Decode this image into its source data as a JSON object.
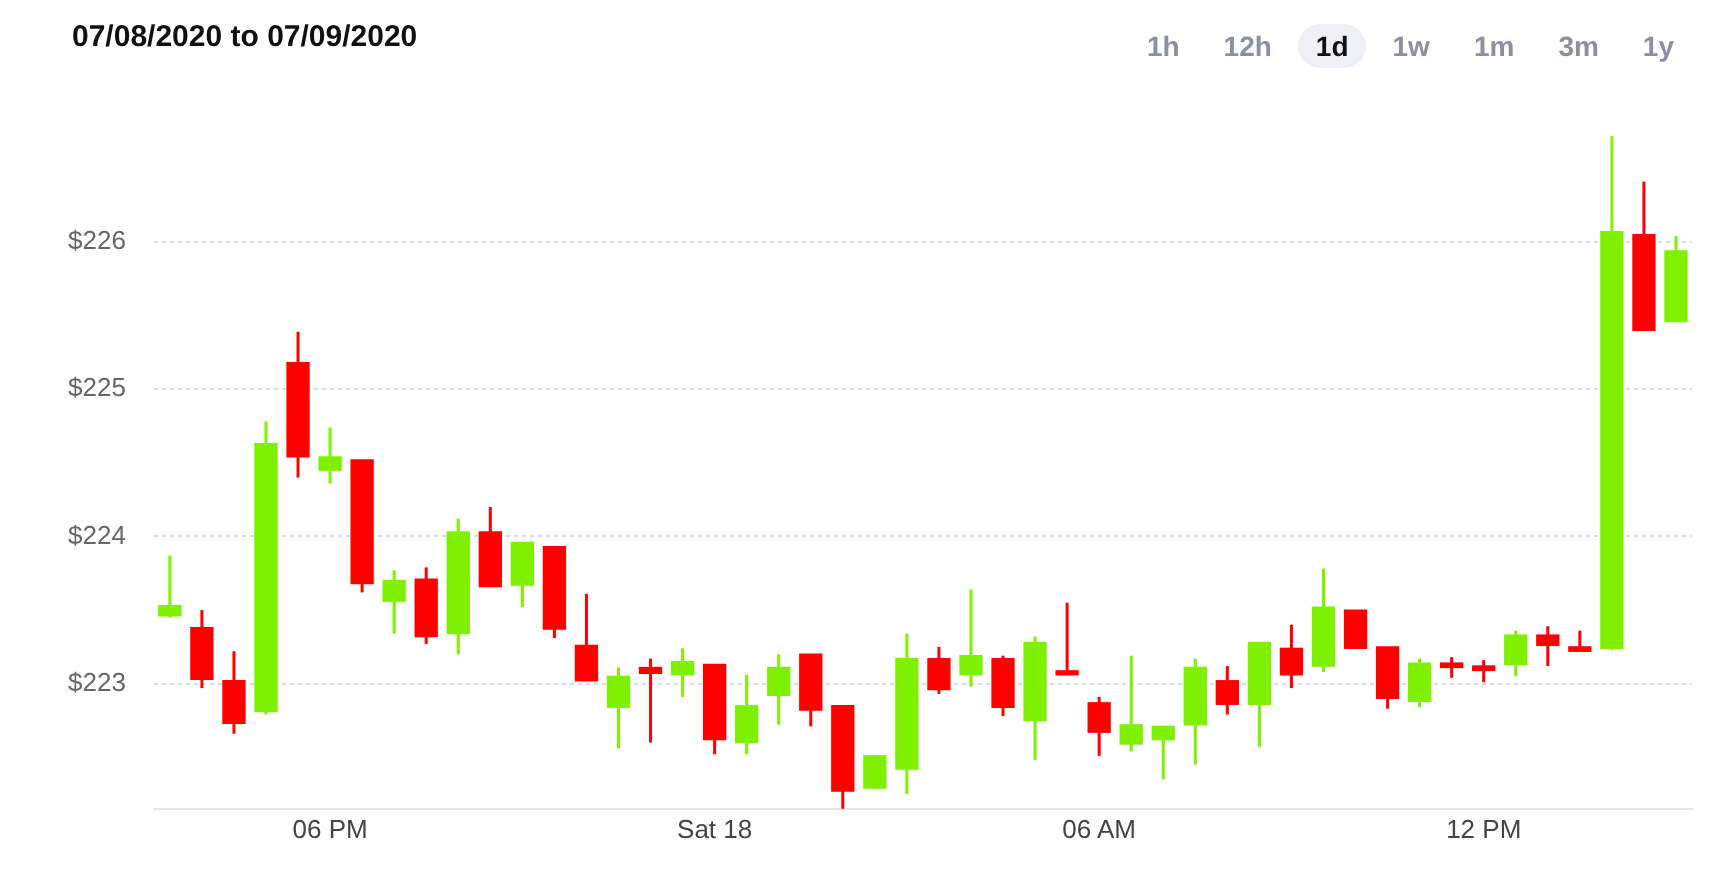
{
  "chart_data": {
    "type": "candlestick",
    "title": "07/08/2020 to 07/09/2020",
    "annotations": [
      "1h",
      "12h",
      "1d",
      "1w",
      "1m",
      "3m",
      "1y"
    ],
    "categories": [
      null,
      null,
      null,
      null,
      null,
      "06 PM",
      null,
      null,
      null,
      null,
      null,
      null,
      null,
      null,
      null,
      null,
      null,
      "Sat 18",
      null,
      null,
      null,
      null,
      null,
      null,
      null,
      null,
      null,
      null,
      null,
      "06 AM",
      null,
      null,
      null,
      null,
      null,
      null,
      null,
      null,
      null,
      null,
      null,
      "12 PM",
      null,
      null,
      null,
      null,
      null,
      null
    ],
    "ohlc": [
      [
        223.46,
        223.87,
        223.45,
        223.53
      ],
      [
        223.38,
        223.5,
        222.97,
        223.03
      ],
      [
        223.02,
        223.22,
        222.66,
        222.73
      ],
      [
        222.81,
        224.78,
        222.79,
        224.63
      ],
      [
        225.18,
        225.39,
        224.4,
        224.54
      ],
      [
        224.45,
        224.74,
        224.36,
        224.54
      ],
      [
        224.52,
        224.52,
        223.62,
        223.68
      ],
      [
        223.56,
        223.77,
        223.34,
        223.7
      ],
      [
        223.71,
        223.79,
        223.27,
        223.32
      ],
      [
        223.34,
        224.12,
        223.2,
        224.03
      ],
      [
        224.03,
        224.2,
        223.66,
        223.66
      ],
      [
        223.67,
        223.96,
        223.52,
        223.96
      ],
      [
        223.93,
        223.93,
        223.31,
        223.37
      ],
      [
        223.26,
        223.61,
        223.02,
        223.02
      ],
      [
        222.84,
        223.11,
        222.56,
        223.05
      ],
      [
        223.11,
        223.17,
        222.6,
        223.07
      ],
      [
        223.06,
        223.24,
        222.91,
        223.15
      ],
      [
        223.13,
        223.13,
        222.52,
        222.62
      ],
      [
        222.6,
        223.06,
        222.52,
        222.85
      ],
      [
        222.92,
        223.2,
        222.72,
        223.11
      ],
      [
        223.2,
        223.2,
        222.71,
        222.82
      ],
      [
        222.85,
        222.85,
        222.15,
        222.27
      ],
      [
        222.29,
        222.51,
        222.29,
        222.51
      ],
      [
        222.42,
        223.34,
        222.25,
        223.17
      ],
      [
        223.17,
        223.25,
        222.93,
        222.96
      ],
      [
        223.06,
        223.64,
        222.98,
        223.19
      ],
      [
        223.17,
        223.19,
        222.78,
        222.84
      ],
      [
        222.75,
        223.32,
        222.48,
        223.28
      ],
      [
        223.08,
        223.55,
        223.06,
        223.06
      ],
      [
        222.87,
        222.91,
        222.51,
        222.67
      ],
      [
        222.59,
        223.19,
        222.54,
        222.72
      ],
      [
        222.62,
        222.71,
        222.35,
        222.71
      ],
      [
        222.72,
        223.17,
        222.45,
        223.11
      ],
      [
        223.02,
        223.12,
        222.79,
        222.86
      ],
      [
        222.86,
        223.28,
        222.57,
        223.28
      ],
      [
        223.24,
        223.4,
        222.97,
        223.06
      ],
      [
        223.12,
        223.78,
        223.08,
        223.52
      ],
      [
        223.5,
        223.5,
        223.24,
        223.24
      ],
      [
        223.25,
        223.25,
        222.83,
        222.9
      ],
      [
        222.88,
        223.17,
        222.84,
        223.14
      ],
      [
        223.14,
        223.18,
        223.04,
        223.11
      ],
      [
        223.12,
        223.16,
        223.01,
        223.09
      ],
      [
        223.13,
        223.36,
        223.05,
        223.33
      ],
      [
        223.33,
        223.39,
        223.12,
        223.26
      ],
      [
        223.25,
        223.36,
        223.22,
        223.22
      ],
      [
        223.24,
        226.72,
        223.23,
        226.07
      ],
      [
        226.05,
        226.41,
        225.4,
        225.4
      ],
      [
        225.46,
        226.04,
        225.46,
        225.94
      ]
    ],
    "colors": [
      "#7ff000",
      "#ff0000",
      "#ff0000",
      "#7ff000",
      "#ff0000",
      "#7ff000",
      "#ff0000",
      "#7ff000",
      "#ff0000",
      "#7ff000",
      "#ff0000",
      "#7ff000",
      "#ff0000",
      "#ff0000",
      "#7ff000",
      "#ff0000",
      "#7ff000",
      "#ff0000",
      "#7ff000",
      "#7ff000",
      "#ff0000",
      "#ff0000",
      "#7ff000",
      "#7ff000",
      "#ff0000",
      "#7ff000",
      "#ff0000",
      "#7ff000",
      "#ff0000",
      "#ff0000",
      "#7ff000",
      "#7ff000",
      "#7ff000",
      "#ff0000",
      "#7ff000",
      "#ff0000",
      "#7ff000",
      "#ff0000",
      "#ff0000",
      "#7ff000",
      "#ff0000",
      "#ff0000",
      "#7ff000",
      "#ff0000",
      "#ff0000",
      "#7ff000",
      "#ff0000",
      "#7ff000"
    ],
    "yticks": [
      {
        "value": 223,
        "label": "$223"
      },
      {
        "value": 224,
        "label": "$224"
      },
      {
        "value": 225,
        "label": "$225"
      },
      {
        "value": 226,
        "label": "$226"
      }
    ],
    "ylim": [
      222.15,
      226.72
    ],
    "grid": "y",
    "legend": false
  }
}
